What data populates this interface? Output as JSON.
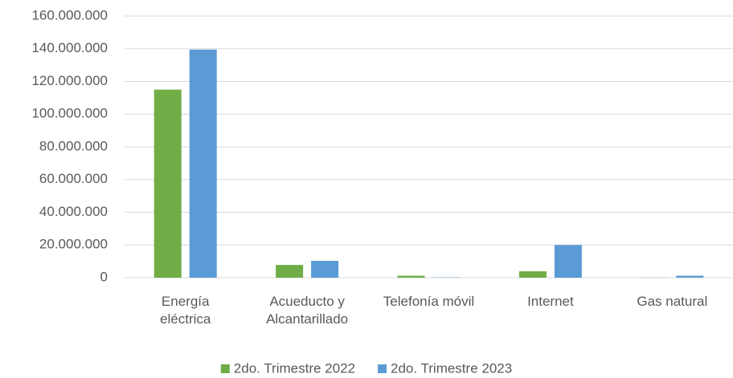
{
  "chart_data": {
    "type": "bar",
    "categories": [
      "Energía eléctrica",
      "Acueducto y Alcantarillado",
      "Telefonía móvil",
      "Internet",
      "Gas natural"
    ],
    "series": [
      {
        "name": "2do. Trimestre 2022",
        "color": "#70ad47",
        "values": [
          115000000,
          7800000,
          1200000,
          3900000,
          100000
        ]
      },
      {
        "name": "2do. Trimestre 2023",
        "color": "#5b9bd5",
        "values": [
          139500000,
          10300000,
          200000,
          20000000,
          1200000
        ]
      }
    ],
    "ylim": [
      0,
      160000000
    ],
    "yticks": [
      0,
      {
        "value": 20000000,
        "label": "20.000.000"
      },
      {
        "value": 40000000,
        "label": "40.000.000"
      },
      {
        "value": 60000000,
        "label": "60.000.000"
      },
      {
        "value": 80000000,
        "label": "80.000.000"
      },
      {
        "value": 100000000,
        "label": "100.000.000"
      },
      {
        "value": 120000000,
        "label": "120.000.000"
      },
      {
        "value": 140000000,
        "label": "140.000.000"
      },
      {
        "value": 160000000,
        "label": "160.000.000"
      }
    ],
    "grid": true,
    "legend": "bottom"
  }
}
